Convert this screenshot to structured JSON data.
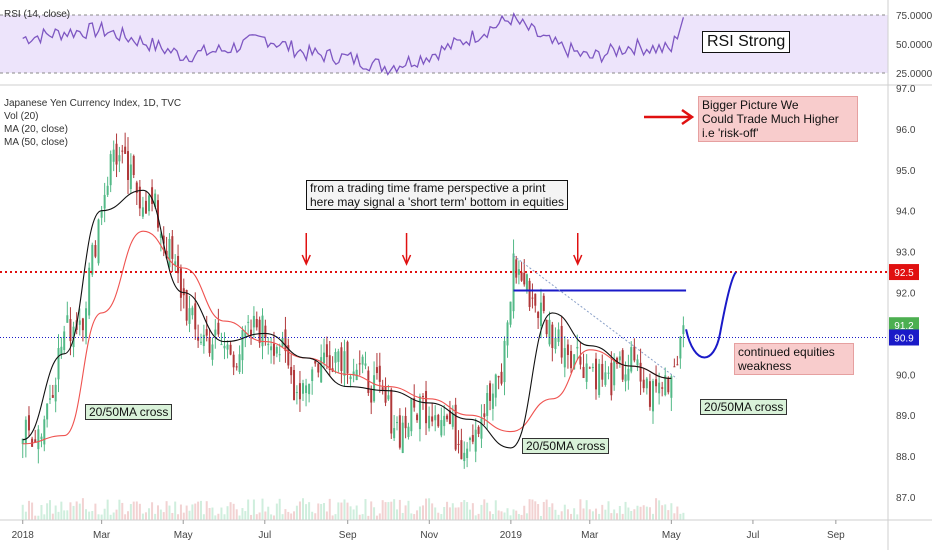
{
  "rsi_panel": {
    "label": "RSI (14, close)",
    "ticks": [
      "75.0000",
      "50.0000",
      "25.0000"
    ],
    "tick_values": [
      75,
      50,
      25
    ]
  },
  "price_panel": {
    "legend": [
      "Japanese Yen Currency Index, 1D, TVC",
      "Vol (20)",
      "MA (20, close)",
      "MA (50, close)"
    ],
    "y_ticks": [
      "97.0",
      "96.0",
      "95.0",
      "94.0",
      "93.0",
      "92.0",
      "91.0",
      "90.0",
      "89.0",
      "88.0",
      "87.0"
    ],
    "y_tick_values": [
      97,
      96,
      95,
      94,
      93,
      92,
      91,
      90,
      89,
      88,
      87
    ],
    "x_ticks": [
      "2018",
      "Mar",
      "May",
      "Jul",
      "Sep",
      "Nov",
      "2019",
      "Mar",
      "May",
      "Jul",
      "Sep"
    ],
    "price_badges": [
      {
        "text": "92.5",
        "value": 92.5,
        "color": "#e01010"
      },
      {
        "text": "91.2",
        "value": 91.2,
        "color": "#4caf50"
      },
      {
        "text": "90.9",
        "value": 90.9,
        "color": "#1a1ac8"
      }
    ]
  },
  "annotations": {
    "rsi_strong": "RSI Strong",
    "bigger_picture": [
      "Bigger Picture We",
      "Could Trade Much Higher",
      "i.e 'risk-off'"
    ],
    "trading_note": [
      "from a trading time frame perspective a print",
      "here may signal a 'short term' bottom in equities"
    ],
    "continued": [
      "continued equities",
      "weakness"
    ],
    "cross_labels": [
      "20/50MA cross",
      "20/50MA cross",
      "20/50MA cross"
    ]
  },
  "colors": {
    "up": "#53b987",
    "down": "#b0383a",
    "ma20": "#111111",
    "ma50": "#ef5350",
    "rsi_line": "#7e57c2",
    "rsi_band": "#ede4fb",
    "level_red": "#e01010",
    "level_blue": "#1a1ac8"
  },
  "chart_data": {
    "type": "candlestick",
    "title": "Japanese Yen Currency Index, 1D, TVC",
    "series": [
      {
        "name": "MA (20, close)",
        "x": [
          "2018-01-01",
          "2018-02-01",
          "2018-03-01",
          "2018-04-01",
          "2018-05-01",
          "2018-06-01",
          "2018-07-01",
          "2018-08-01",
          "2018-09-01",
          "2018-10-01",
          "2018-11-01",
          "2018-12-01",
          "2019-01-01",
          "2019-02-01",
          "2019-03-01",
          "2019-04-01",
          "2019-05-01"
        ],
        "values": [
          88.4,
          90.5,
          94.0,
          94.5,
          92.0,
          90.8,
          91.0,
          90.4,
          89.7,
          89.6,
          89.3,
          88.9,
          88.2,
          91.5,
          90.7,
          90.2,
          89.9
        ]
      },
      {
        "name": "MA (50, close)",
        "x": [
          "2018-01-01",
          "2018-02-01",
          "2018-03-01",
          "2018-04-01",
          "2018-05-01",
          "2018-06-01",
          "2018-07-01",
          "2018-08-01",
          "2018-09-01",
          "2018-10-01",
          "2018-11-01",
          "2018-12-01",
          "2019-01-01",
          "2019-02-01",
          "2019-03-01",
          "2019-04-01",
          "2019-05-01"
        ],
        "values": [
          88.3,
          88.5,
          91.5,
          93.5,
          92.6,
          91.3,
          90.8,
          90.4,
          90.0,
          89.7,
          89.4,
          89.0,
          88.6,
          89.4,
          90.6,
          90.2,
          89.9
        ]
      }
    ],
    "close_path": {
      "x": [
        "2018-01-01",
        "2018-01-15",
        "2018-02-01",
        "2018-02-15",
        "2018-03-01",
        "2018-03-10",
        "2018-03-25",
        "2018-04-10",
        "2018-04-25",
        "2018-05-10",
        "2018-05-25",
        "2018-06-10",
        "2018-06-25",
        "2018-07-10",
        "2018-07-25",
        "2018-08-10",
        "2018-08-25",
        "2018-09-10",
        "2018-09-25",
        "2018-10-10",
        "2018-10-25",
        "2018-11-10",
        "2018-11-25",
        "2018-12-10",
        "2018-12-25",
        "2019-01-03",
        "2019-01-15",
        "2019-02-01",
        "2019-02-15",
        "2019-03-01",
        "2019-03-15",
        "2019-04-01",
        "2019-04-15",
        "2019-05-01",
        "2019-05-10"
      ],
      "values": [
        88.5,
        88.7,
        91.0,
        91.5,
        94.2,
        95.5,
        94.6,
        94.0,
        92.5,
        91.0,
        90.8,
        90.5,
        91.2,
        90.8,
        89.6,
        90.3,
        90.6,
        90.1,
        89.5,
        88.6,
        89.3,
        89.1,
        88.3,
        89.0,
        89.9,
        92.7,
        92.0,
        91.0,
        90.6,
        90.2,
        89.8,
        90.3,
        89.5,
        90.0,
        91.2
      ]
    },
    "hlines": [
      {
        "value": 92.5,
        "color": "#e01010",
        "style": "dotted"
      },
      {
        "value": 90.9,
        "color": "#1a1ac8",
        "style": "dotted"
      },
      {
        "value": 92.05,
        "color": "#1a1ac8",
        "style": "solid"
      }
    ],
    "xlabel": "",
    "ylabel": "",
    "ylim": [
      86.5,
      97.0
    ],
    "rsi": {
      "name": "RSI (14, close)",
      "x": [
        "2018-01-01",
        "2018-02-01",
        "2018-03-01",
        "2018-04-01",
        "2018-05-01",
        "2018-06-01",
        "2018-07-01",
        "2018-08-01",
        "2018-09-01",
        "2018-10-01",
        "2018-11-01",
        "2018-12-01",
        "2019-01-01",
        "2019-02-01",
        "2019-03-01",
        "2019-04-01",
        "2019-05-01",
        "2019-05-10"
      ],
      "values": [
        55,
        60,
        62,
        52,
        40,
        45,
        55,
        42,
        38,
        30,
        40,
        55,
        72,
        50,
        38,
        48,
        45,
        73
      ],
      "ylim": [
        20,
        80
      ]
    }
  }
}
